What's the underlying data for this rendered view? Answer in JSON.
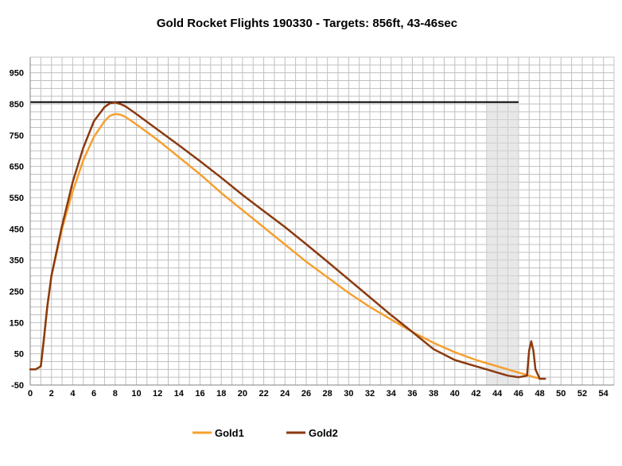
{
  "chart_data": {
    "type": "line",
    "title": "Gold Rocket Flights 190330 - Targets: 856ft, 43-46sec",
    "xlabel": "",
    "ylabel": "",
    "xlim": [
      0,
      55
    ],
    "ylim": [
      -50,
      1000
    ],
    "x_ticks": [
      0,
      2,
      4,
      6,
      8,
      10,
      12,
      14,
      16,
      18,
      20,
      22,
      24,
      26,
      28,
      30,
      32,
      34,
      36,
      38,
      40,
      42,
      44,
      46,
      48,
      50,
      52,
      54
    ],
    "y_ticks": [
      -50,
      50,
      150,
      250,
      350,
      450,
      550,
      650,
      750,
      850,
      950
    ],
    "grid": true,
    "legend_position": "bottom",
    "target_altitude": 856,
    "target_time_window": [
      43,
      46
    ],
    "series": [
      {
        "name": "Gold1",
        "color": "#F5A030",
        "x": [
          0,
          0.5,
          1.0,
          1.3,
          1.6,
          2.0,
          3.0,
          4.0,
          5.0,
          6.0,
          7.0,
          7.5,
          8.0,
          8.5,
          9.0,
          10,
          12,
          14,
          16,
          18,
          20,
          22,
          24,
          26,
          28,
          30,
          32,
          34,
          36,
          38,
          40,
          42,
          43,
          44,
          45,
          46,
          47,
          47.5,
          48
        ],
        "y": [
          0,
          0,
          10,
          100,
          200,
          300,
          450,
          570,
          670,
          745,
          795,
          812,
          818,
          816,
          808,
          785,
          735,
          680,
          625,
          565,
          510,
          455,
          400,
          345,
          295,
          245,
          200,
          160,
          120,
          85,
          55,
          30,
          20,
          10,
          0,
          -10,
          -20,
          -25,
          -30
        ]
      },
      {
        "name": "Gold2",
        "color": "#8B3A0F",
        "x": [
          0,
          0.5,
          1.0,
          1.3,
          1.6,
          2.0,
          3.0,
          4.0,
          5.0,
          6.0,
          7.0,
          7.5,
          8.0,
          8.5,
          9.0,
          10,
          12,
          14,
          16,
          18,
          20,
          22,
          24,
          26,
          28,
          30,
          32,
          34,
          36,
          38,
          40,
          42,
          43,
          44,
          45,
          46,
          46.8,
          47.0,
          47.2,
          47.4,
          47.6,
          48.0,
          48.5
        ],
        "y": [
          0,
          0,
          10,
          100,
          200,
          300,
          460,
          600,
          710,
          795,
          840,
          852,
          855,
          850,
          842,
          818,
          768,
          718,
          667,
          614,
          559,
          507,
          456,
          401,
          345,
          288,
          231,
          174,
          120,
          65,
          30,
          10,
          0,
          -10,
          -20,
          -25,
          -20,
          60,
          90,
          60,
          0,
          -30,
          -30
        ]
      }
    ]
  }
}
